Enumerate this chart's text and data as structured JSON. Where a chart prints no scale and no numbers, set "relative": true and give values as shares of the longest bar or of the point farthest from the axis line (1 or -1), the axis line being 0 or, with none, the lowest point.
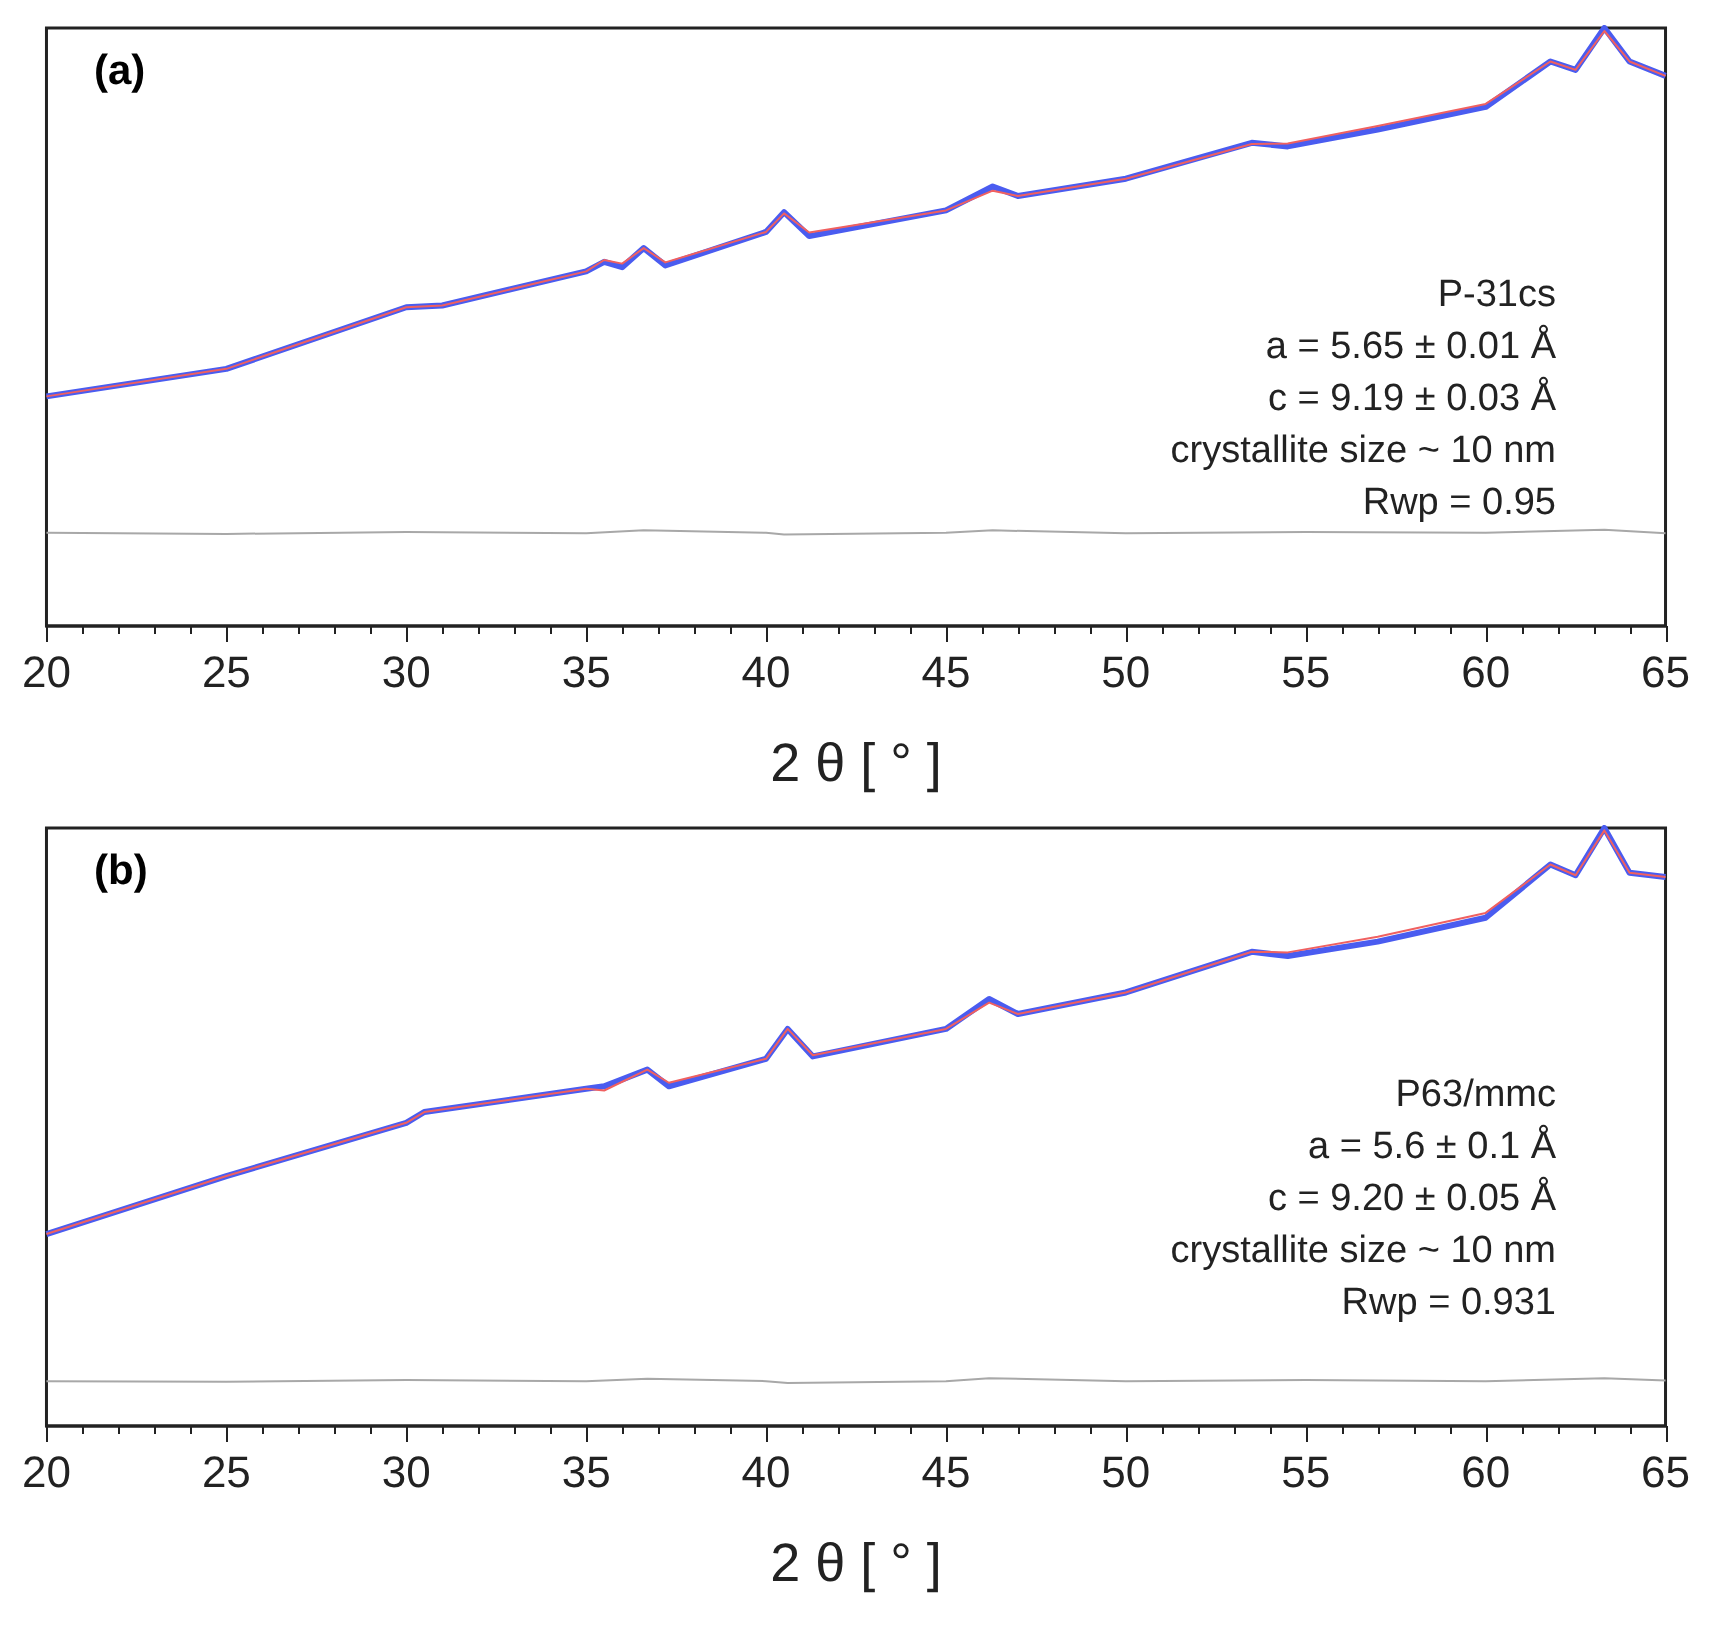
{
  "chart_data": [
    {
      "type": "line",
      "title": "(a)",
      "xlabel": "2 θ [ ° ]",
      "relative": true,
      "xlim": [
        20,
        65
      ],
      "xticks": [
        20,
        25,
        30,
        35,
        40,
        45,
        50,
        55,
        60,
        65
      ],
      "grid": false,
      "marker": "none",
      "annotations": [
        "P-31cs",
        "a = 5.65 ± 0.01 Å",
        "c = 9.19 ± 0.03 Å",
        "crystallite size ~ 10 nm",
        "Rwp = 0.95"
      ],
      "series": [
        {
          "color": "#4a5cf0",
          "x": [
            20,
            25,
            30,
            31,
            35,
            35.5,
            36,
            36.6,
            37.2,
            40,
            40.5,
            41.2,
            45,
            46.3,
            47,
            50,
            53.5,
            54.5,
            57,
            60,
            61.8,
            62.5,
            63.3,
            64,
            65
          ],
          "values": [
            0.384,
            0.43,
            0.533,
            0.536,
            0.593,
            0.609,
            0.6,
            0.632,
            0.603,
            0.659,
            0.692,
            0.652,
            0.695,
            0.735,
            0.719,
            0.748,
            0.808,
            0.802,
            0.83,
            0.868,
            0.944,
            0.93,
            1.0,
            0.944,
            0.92
          ]
        },
        {
          "color": "#f06060",
          "x": [
            20,
            25,
            30,
            31,
            35,
            35.5,
            36,
            36.6,
            37.2,
            40,
            40.5,
            41.2,
            45,
            46.3,
            47,
            50,
            53.5,
            54.5,
            57,
            60,
            61.8,
            62.5,
            63.3,
            64,
            65
          ],
          "values": [
            0.384,
            0.43,
            0.533,
            0.536,
            0.593,
            0.612,
            0.606,
            0.632,
            0.608,
            0.659,
            0.69,
            0.658,
            0.695,
            0.728,
            0.719,
            0.748,
            0.806,
            0.807,
            0.836,
            0.873,
            0.944,
            0.93,
            0.995,
            0.944,
            0.92
          ]
        },
        {
          "color": "#a8a8a8",
          "x": [
            20,
            25,
            30,
            35,
            36.6,
            40,
            40.5,
            45,
            46.3,
            50,
            55,
            60,
            63.3,
            65
          ],
          "values": [
            0.156,
            0.154,
            0.157,
            0.155,
            0.16,
            0.156,
            0.153,
            0.156,
            0.16,
            0.155,
            0.157,
            0.156,
            0.161,
            0.155
          ]
        }
      ]
    },
    {
      "type": "line",
      "title": "(b)",
      "xlabel": "2 θ [ ° ]",
      "relative": true,
      "xlim": [
        20,
        65
      ],
      "xticks": [
        20,
        25,
        30,
        35,
        40,
        45,
        50,
        55,
        60,
        65
      ],
      "grid": false,
      "marker": "none",
      "annotations": [
        "P63/mmc",
        "a = 5.6 ± 0.1 Å",
        "c = 9.20 ± 0.05 Å",
        "crystallite size ~ 10 nm",
        "Rwp = 0.931"
      ],
      "series": [
        {
          "color": "#4a5cf0",
          "x": [
            20,
            25,
            30,
            30.5,
            35,
            35.5,
            36.7,
            37.3,
            40,
            40.6,
            41.3,
            45,
            46.2,
            47,
            50,
            53.5,
            54.5,
            57,
            60,
            61.8,
            62.5,
            63.3,
            64,
            65
          ],
          "values": [
            0.321,
            0.418,
            0.507,
            0.525,
            0.564,
            0.568,
            0.596,
            0.568,
            0.614,
            0.664,
            0.618,
            0.664,
            0.714,
            0.689,
            0.725,
            0.793,
            0.786,
            0.81,
            0.85,
            0.939,
            0.921,
            1.0,
            0.925,
            0.918
          ]
        },
        {
          "color": "#f06060",
          "x": [
            20,
            25,
            30,
            30.5,
            35,
            35.5,
            36.7,
            37.3,
            40,
            40.6,
            41.3,
            45,
            46.2,
            47,
            50,
            53.5,
            54.5,
            57,
            60,
            61.8,
            62.5,
            63.3,
            64,
            65
          ],
          "values": [
            0.321,
            0.418,
            0.507,
            0.525,
            0.564,
            0.561,
            0.596,
            0.574,
            0.614,
            0.664,
            0.62,
            0.664,
            0.708,
            0.689,
            0.725,
            0.793,
            0.792,
            0.818,
            0.858,
            0.939,
            0.921,
            0.996,
            0.925,
            0.918
          ]
        },
        {
          "color": "#a8a8a8",
          "x": [
            20,
            25,
            30,
            35,
            36.7,
            40,
            40.6,
            45,
            46.2,
            50,
            55,
            60,
            63.3,
            65
          ],
          "values": [
            0.075,
            0.074,
            0.077,
            0.075,
            0.079,
            0.075,
            0.072,
            0.075,
            0.08,
            0.075,
            0.077,
            0.075,
            0.08,
            0.076
          ]
        }
      ]
    }
  ]
}
